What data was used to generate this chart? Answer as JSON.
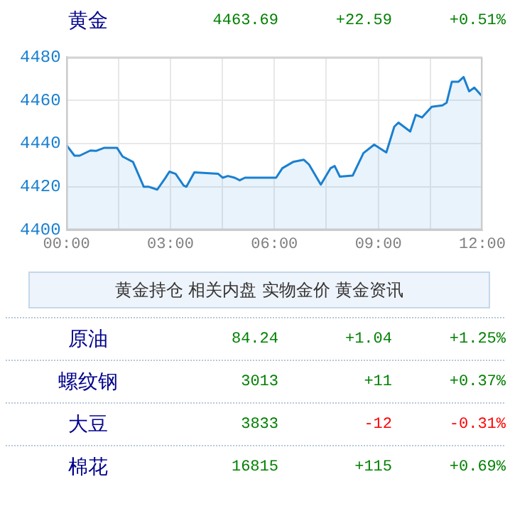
{
  "chart_data": {
    "type": "area",
    "title": "黄金",
    "annotations": [
      "4463.69",
      "+22.59",
      "+0.51%",
      "黄金持仓 相关内盘 实物金价 黄金资讯",
      "原油",
      "84.24",
      "+1.04",
      "+1.25%",
      "螺纹钢",
      "3013",
      "+11",
      "+0.37%",
      "大豆",
      "3833",
      "-12",
      "-0.31%",
      "棉花",
      "16815",
      "+115",
      "+0.69%"
    ],
    "x": [
      0,
      0.23,
      0.38,
      0.69,
      0.85,
      1.08,
      1.46,
      1.62,
      1.92,
      2.23,
      2.38,
      2.62,
      2.85,
      2.97,
      3.15,
      3.38,
      3.46,
      3.69,
      4.38,
      4.51,
      4.66,
      4.85,
      5.0,
      5.15,
      6.05,
      6.23,
      6.54,
      6.85,
      7.0,
      7.34,
      7.62,
      7.74,
      7.89,
      8.26,
      8.57,
      8.88,
      9.23,
      9.46,
      9.58,
      9.92,
      10.08,
      10.26,
      10.54,
      10.85,
      10.97,
      11.12,
      11.31,
      11.46,
      11.62,
      11.77,
      12.0
    ],
    "series": [
      {
        "color": "#1a80d0",
        "values": [
          4439.3,
          4434.4,
          4434.4,
          4436.8,
          4436.6,
          4438,
          4438,
          4434,
          4431.5,
          4420,
          4420,
          4418.7,
          4424,
          4427,
          4426,
          4420.6,
          4420,
          4426.7,
          4426,
          4424.2,
          4425,
          4424.2,
          4423,
          4424.2,
          4424.2,
          4428.6,
          4431.5,
          4432.5,
          4430.3,
          4421,
          4428.6,
          4429.6,
          4424.7,
          4425.2,
          4435.6,
          4439.5,
          4435.9,
          4447.8,
          4449.7,
          4445.6,
          4453.3,
          4452.1,
          4457,
          4457.7,
          4458.9,
          4468.6,
          4468.6,
          4470.8,
          4464.2,
          4465.9,
          4461.8
        ]
      }
    ],
    "xlim": [
      0,
      12
    ],
    "xticks": [
      {
        "value": 0,
        "label": "00:00"
      },
      {
        "value": 1.5,
        "label": null
      },
      {
        "value": 3,
        "label": "03:00"
      },
      {
        "value": 4.5,
        "label": null
      },
      {
        "value": 6,
        "label": "06:00"
      },
      {
        "value": 7.5,
        "label": null
      },
      {
        "value": 9,
        "label": "09:00"
      },
      {
        "value": 10.5,
        "label": null
      },
      {
        "value": 12,
        "label": "12:00"
      }
    ],
    "ylim": [
      4400,
      4480
    ],
    "yticks": [
      4400,
      4420,
      4440,
      4460,
      4480
    ],
    "grid": true,
    "legend": false,
    "marker": "none",
    "line_style": "solid"
  }
}
